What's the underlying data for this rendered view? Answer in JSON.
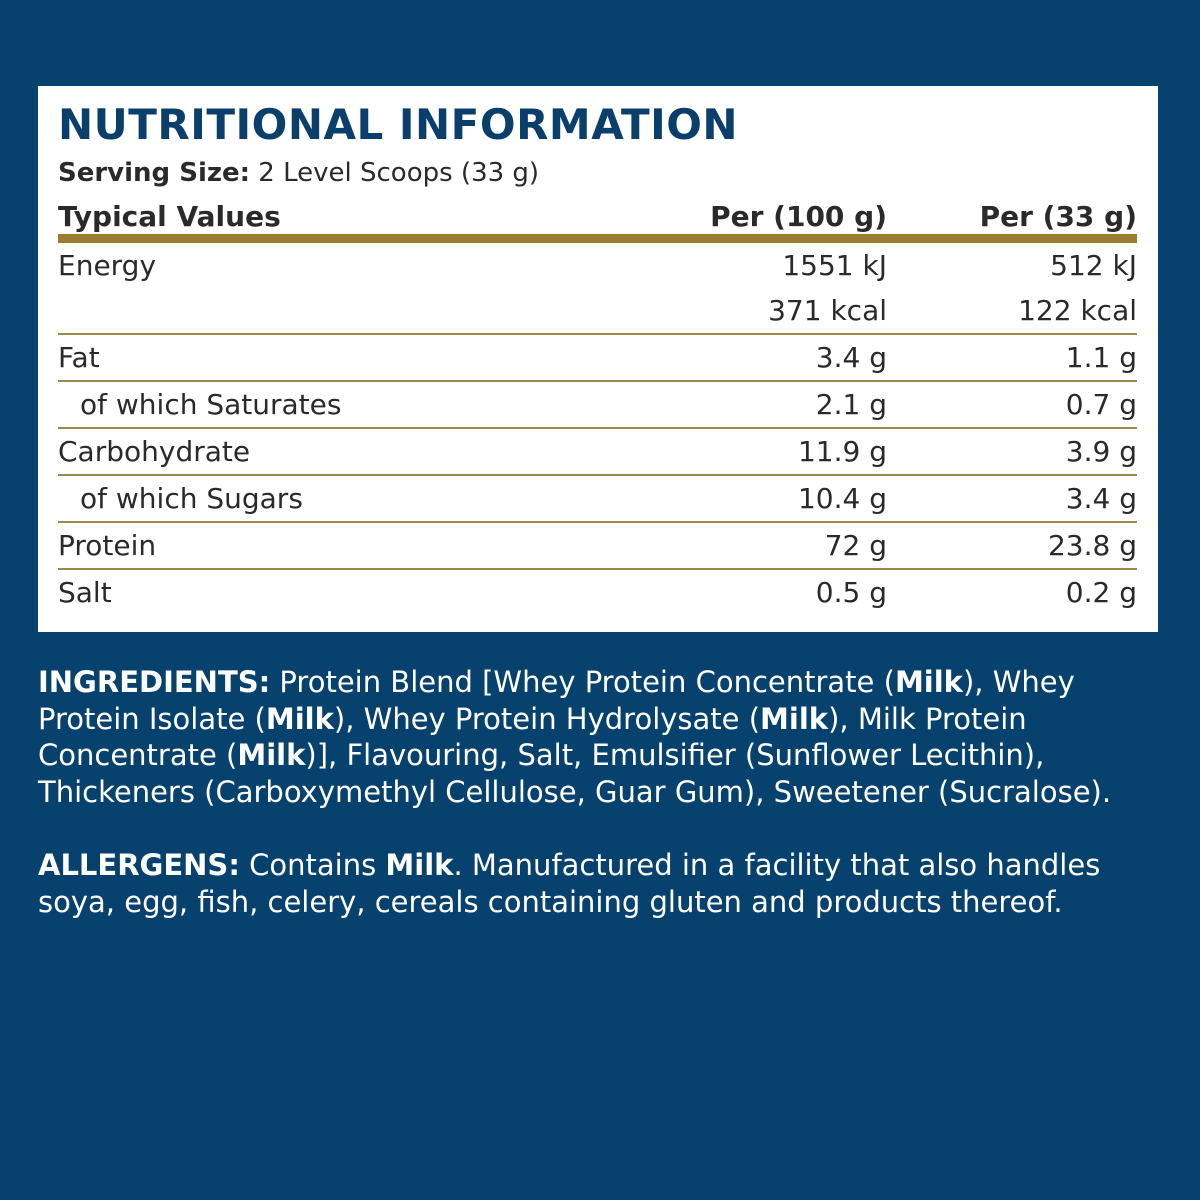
{
  "title": "NUTRITIONAL INFORMATION",
  "serving": {
    "label": "Serving Size:",
    "value": "2 Level Scoops (33 g)"
  },
  "table": {
    "headers": [
      "Typical Values",
      "Per (100 g)",
      "Per (33 g)"
    ],
    "rows": [
      {
        "name": "Energy",
        "per100": "1551 kJ",
        "per33": "512 kJ"
      },
      {
        "name": "",
        "per100": "371 kcal",
        "per33": "122 kcal"
      },
      {
        "name": "Fat",
        "per100": "3.4 g",
        "per33": "1.1 g"
      },
      {
        "name": "of which Saturates",
        "per100": "2.1 g",
        "per33": "0.7 g"
      },
      {
        "name": "Carbohydrate",
        "per100": "11.9 g",
        "per33": "3.9 g"
      },
      {
        "name": "of which Sugars",
        "per100": "10.4 g",
        "per33": "3.4 g"
      },
      {
        "name": "Protein",
        "per100": "72 g",
        "per33": "23.8 g"
      },
      {
        "name": "Salt",
        "per100": "0.5 g",
        "per33": "0.2 g"
      }
    ]
  },
  "ingredients": {
    "label": "INGREDIENTS:",
    "parts": [
      " Protein Blend [Whey Protein Concentrate (",
      "Milk",
      "), Whey Protein Isolate (",
      "Milk",
      "), Whey Protein Hydrolysate (",
      "Milk",
      "), Milk Protein Concentrate (",
      "Milk",
      ")], Flavouring, Salt, Emulsifier (Sunflower Lecithin), Thickeners (Carboxymethyl Cellulose, Guar Gum), Sweetener (Sucralose)."
    ]
  },
  "allergens": {
    "label": "ALLERGENS:",
    "parts": [
      " Contains ",
      "Milk",
      ". Manufactured in a facility that also handles soya, egg, fish, celery, cereals containing gluten and products thereof."
    ]
  },
  "colors": {
    "background": "#07426f",
    "title": "#0b3f6b",
    "header_rule": "#9a7d2e",
    "row_rule": "#9a8a4a"
  }
}
